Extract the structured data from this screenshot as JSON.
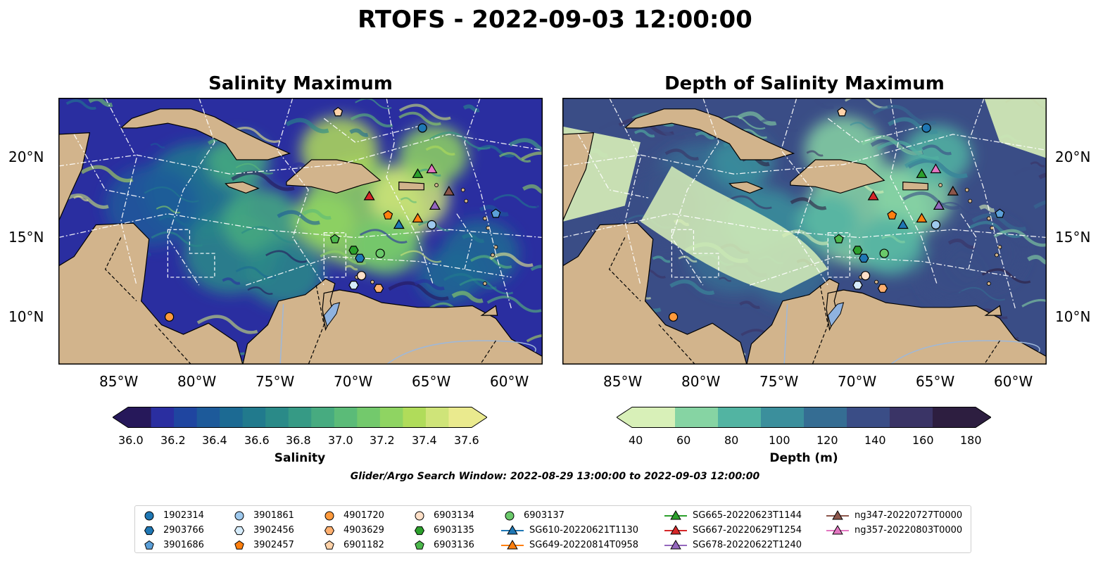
{
  "title": "RTOFS - 2022-09-03 12:00:00",
  "panels": [
    {
      "title": "Salinity Maximum",
      "colorbar": {
        "label": "Salinity",
        "ticks": [
          "36.0",
          "36.2",
          "36.4",
          "36.6",
          "36.8",
          "37.0",
          "37.2",
          "37.4",
          "37.6"
        ],
        "colors": [
          "#26185a",
          "#2a2ea0",
          "#1f45a0",
          "#1d5a9a",
          "#1c6a93",
          "#217a8d",
          "#2a8a88",
          "#369a85",
          "#47ab80",
          "#5bbb78",
          "#73c96c",
          "#8fd462",
          "#b0dc5a",
          "#cfe479",
          "#eaea8e"
        ]
      },
      "y_ticks": [
        "20°N",
        "15°N",
        "10°N"
      ],
      "x_ticks": [
        "85°W",
        "80°W",
        "75°W",
        "70°W",
        "65°W",
        "60°W"
      ]
    },
    {
      "title": "Depth of Salinity Maximum",
      "colorbar": {
        "label": "Depth (m)",
        "ticks": [
          "40",
          "60",
          "80",
          "100",
          "120",
          "140",
          "160",
          "180"
        ],
        "colors": [
          "#d8f0b8",
          "#86d4a3",
          "#52b4a2",
          "#3b8f9c",
          "#356d93",
          "#3a4d86",
          "#3a3466",
          "#2d1e40"
        ]
      },
      "y_ticks": [
        "20°N",
        "15°N",
        "10°N"
      ],
      "x_ticks": [
        "85°W",
        "80°W",
        "75°W",
        "70°W",
        "65°W",
        "60°W"
      ]
    }
  ],
  "map_extent": {
    "lon": [
      -89,
      -58
    ],
    "lat": [
      7,
      23.8
    ]
  },
  "search_window": "Glider/Argo Search Window: 2022-08-29 13:00:00 to 2022-09-03 12:00:00",
  "floats": [
    {
      "id": "1902314",
      "marker": "circle",
      "color": "#1f77b4",
      "lon": -65.7,
      "lat": 21.9
    },
    {
      "id": "2903766",
      "marker": "hexagon",
      "color": "#1f77b4",
      "lon": -69.7,
      "lat": 13.7
    },
    {
      "id": "3901686",
      "marker": "pentagon",
      "color": "#5b9fd8",
      "lon": -61.0,
      "lat": 16.5
    },
    {
      "id": "3901861",
      "marker": "circle",
      "color": "#9ec9ee",
      "lon": -65.1,
      "lat": 15.8
    },
    {
      "id": "3902456",
      "marker": "hexagon",
      "color": "#d6ecfb",
      "lon": -70.1,
      "lat": 12.0
    },
    {
      "id": "3902457",
      "marker": "pentagon",
      "color": "#ff7f0e",
      "lon": -67.9,
      "lat": 16.4
    },
    {
      "id": "4901720",
      "marker": "circle",
      "color": "#ff9a3c",
      "lon": -81.9,
      "lat": 10.0
    },
    {
      "id": "4903629",
      "marker": "hexagon",
      "color": "#ffb070",
      "lon": -68.5,
      "lat": 11.8
    },
    {
      "id": "6901182",
      "marker": "pentagon",
      "color": "#ffd2a8",
      "lon": -71.1,
      "lat": 22.9
    },
    {
      "id": "6903134",
      "marker": "circle",
      "color": "#ffe0c8",
      "lon": -69.6,
      "lat": 12.6
    },
    {
      "id": "6903135",
      "marker": "hexagon",
      "color": "#2ca02c",
      "lon": -70.1,
      "lat": 14.2
    },
    {
      "id": "6903136",
      "marker": "pentagon",
      "color": "#4cb84c",
      "lon": -71.3,
      "lat": 14.9
    },
    {
      "id": "6903137",
      "marker": "circle",
      "color": "#6ac96a",
      "lon": -68.4,
      "lat": 14.0
    }
  ],
  "gliders": [
    {
      "id": "SG610-20220621T1130",
      "color": "#1f77b4",
      "lon": -67.2,
      "lat": 15.8
    },
    {
      "id": "SG649-20220814T0958",
      "color": "#ff7f0e",
      "lon": -66.0,
      "lat": 16.2
    },
    {
      "id": "SG665-20220623T1144",
      "color": "#2ca02c",
      "lon": -66.0,
      "lat": 19.0
    },
    {
      "id": "SG667-20220629T1254",
      "color": "#d62728",
      "lon": -69.1,
      "lat": 17.6
    },
    {
      "id": "SG678-20220622T1240",
      "color": "#9467bd",
      "lon": -64.9,
      "lat": 17.0
    },
    {
      "id": "ng347-20220727T0000",
      "color": "#8c564b",
      "lon": -64.0,
      "lat": 17.9
    },
    {
      "id": "ng357-20220803T0000",
      "color": "#e377c2",
      "lon": -65.1,
      "lat": 19.3
    }
  ]
}
